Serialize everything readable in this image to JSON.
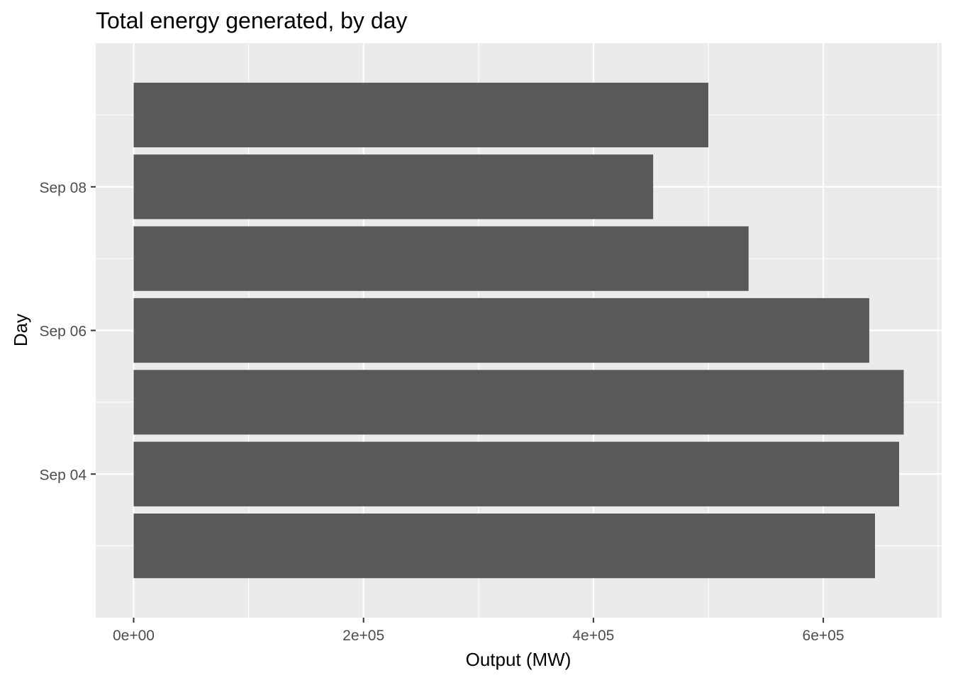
{
  "chart_data": {
    "type": "bar",
    "orientation": "horizontal",
    "title": "Total energy generated, by day",
    "xlabel": "Output (MW)",
    "ylabel": "Day",
    "categories": [
      "2021-09-03",
      "2021-09-04",
      "2021-09-05",
      "2021-09-06",
      "2021-09-07",
      "2021-09-08",
      "2021-09-09"
    ],
    "values": [
      645000,
      666000,
      670000,
      640000,
      535000,
      452000,
      500000
    ],
    "xlim": [
      -33000,
      703000
    ],
    "x_ticks": [
      0,
      200000,
      400000,
      600000
    ],
    "x_tick_labels": [
      "0e+00",
      "2e+05",
      "4e+05",
      "6e+05"
    ],
    "y_ticks": [
      "2021-09-04",
      "2021-09-06",
      "2021-09-08"
    ],
    "y_tick_labels": [
      "Sep 04",
      "Sep 06",
      "Sep 08"
    ],
    "ylim": [
      "2021-09-02",
      "2021-09-10"
    ],
    "grid": true,
    "legend": "none",
    "colors": {
      "bar": "#595959",
      "panel": "#ebebeb",
      "grid": "#ffffff",
      "tick_label": "#4d4d4d",
      "tick": "#333333"
    }
  }
}
